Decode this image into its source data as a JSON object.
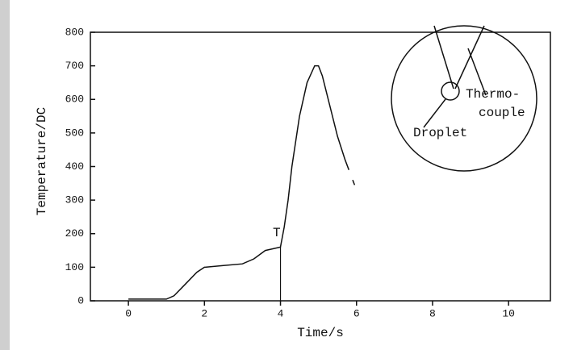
{
  "chart_data": {
    "type": "line",
    "x_label": "Time/s",
    "y_label": "Temperature/DC",
    "x": [
      0,
      0.5,
      1,
      1.2,
      1.5,
      1.8,
      2,
      2.5,
      3,
      3.3,
      3.6,
      3.8,
      4,
      4.1,
      4.2,
      4.3,
      4.5,
      4.7,
      4.9,
      5,
      5.1,
      5.3,
      5.5,
      5.7,
      5.8,
      5.85,
      5.9,
      5.95
    ],
    "series": [
      {
        "color": "#111111",
        "values": [
          5,
          5,
          5,
          15,
          50,
          85,
          100,
          105,
          110,
          125,
          150,
          155,
          160,
          220,
          300,
          400,
          550,
          650,
          700,
          700,
          670,
          580,
          490,
          420,
          390,
          null,
          360,
          345
        ]
      }
    ],
    "vline": 4,
    "xlim": [
      -1,
      11.1
    ],
    "ylim": [
      0,
      800
    ],
    "xticks": [
      0,
      2,
      4,
      6,
      8,
      10
    ],
    "yticks": [
      0,
      100,
      200,
      300,
      400,
      500,
      600,
      700,
      800
    ],
    "annotations": [
      "T",
      "Thermo-",
      "couple",
      "Droplet"
    ]
  }
}
